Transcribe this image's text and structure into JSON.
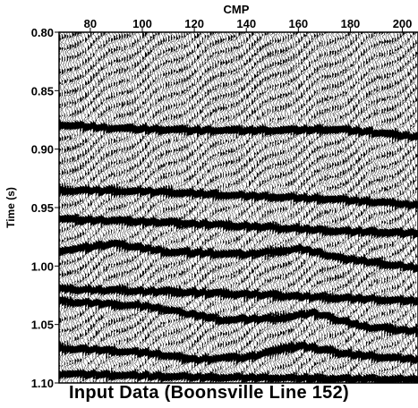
{
  "caption": "Input Data (Boonsville Line 152)",
  "chart_data": {
    "type": "seismic_section",
    "xlabel": "CMP",
    "ylabel": "Time (s)",
    "xlim": [
      68,
      206
    ],
    "ylim": [
      0.8,
      1.1
    ],
    "y_inverted": true,
    "x_ticks": [
      80,
      100,
      120,
      140,
      160,
      180,
      200
    ],
    "y_ticks": [
      "0.80",
      "0.85",
      "0.90",
      "0.95",
      "1.00",
      "1.05",
      "1.10"
    ],
    "display": "wiggle variable-area traces, black on white",
    "reflectors": [
      {
        "points": [
          [
            68,
            0.879
          ],
          [
            85,
            0.882
          ],
          [
            120,
            0.884
          ],
          [
            150,
            0.884
          ],
          [
            175,
            0.883
          ],
          [
            190,
            0.886
          ],
          [
            206,
            0.89
          ]
        ]
      },
      {
        "points": [
          [
            68,
            0.935
          ],
          [
            100,
            0.936
          ],
          [
            140,
            0.94
          ],
          [
            175,
            0.943
          ],
          [
            206,
            0.948
          ]
        ]
      },
      {
        "points": [
          [
            68,
            0.96
          ],
          [
            100,
            0.962
          ],
          [
            140,
            0.966
          ],
          [
            175,
            0.97
          ],
          [
            206,
            0.972
          ]
        ]
      },
      {
        "points": [
          [
            68,
            0.987
          ],
          [
            88,
            0.981
          ],
          [
            110,
            0.988
          ],
          [
            140,
            0.99
          ],
          [
            160,
            0.985
          ],
          [
            175,
            0.993
          ],
          [
            206,
            1.002
          ]
        ]
      },
      {
        "points": [
          [
            68,
            1.02
          ],
          [
            110,
            1.022
          ],
          [
            150,
            1.025
          ],
          [
            206,
            1.03
          ]
        ]
      },
      {
        "points": [
          [
            68,
            1.03
          ],
          [
            100,
            1.034
          ],
          [
            130,
            1.046
          ],
          [
            150,
            1.045
          ],
          [
            165,
            1.04
          ],
          [
            185,
            1.052
          ],
          [
            206,
            1.056
          ]
        ]
      },
      {
        "points": [
          [
            68,
            1.07
          ],
          [
            100,
            1.074
          ],
          [
            120,
            1.08
          ],
          [
            140,
            1.078
          ],
          [
            160,
            1.068
          ],
          [
            180,
            1.076
          ],
          [
            206,
            1.08
          ]
        ]
      },
      {
        "points": [
          [
            68,
            1.092
          ],
          [
            120,
            1.095
          ],
          [
            206,
            1.097
          ]
        ]
      }
    ]
  }
}
